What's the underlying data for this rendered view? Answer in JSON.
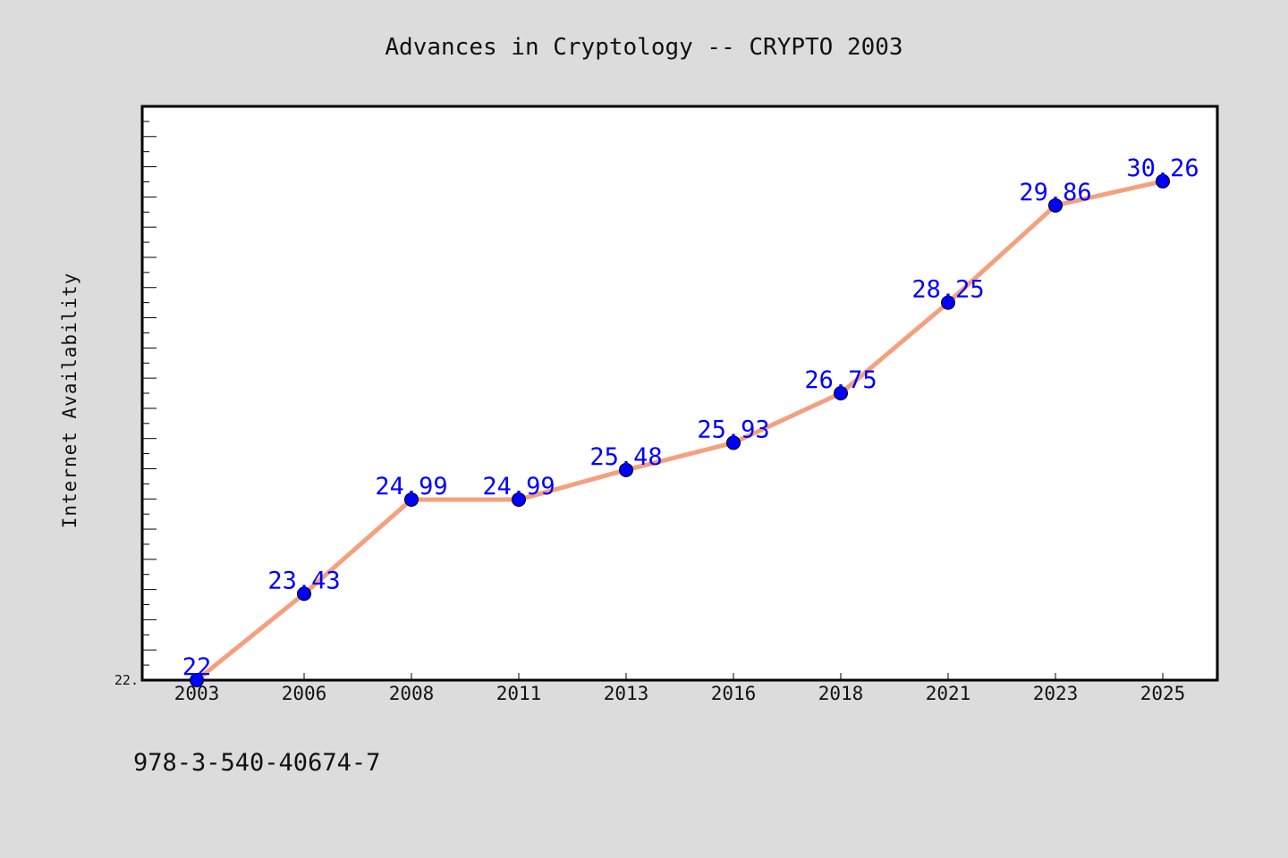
{
  "chart_data": {
    "type": "line",
    "title": "Advances in Cryptology -- CRYPTO 2003",
    "xlabel": "",
    "ylabel": "Internet Availability",
    "x": [
      "2003",
      "2006",
      "2008",
      "2011",
      "2013",
      "2016",
      "2018",
      "2021",
      "2023",
      "2025"
    ],
    "series": [
      {
        "values": [
          22,
          23.43,
          24.99,
          24.99,
          25.48,
          25.93,
          26.75,
          28.25,
          29.86,
          30.26
        ],
        "labels": [
          "22",
          "23.43",
          "24.99",
          "24.99",
          "25.48",
          "25.93",
          "26.75",
          "28.25",
          "29.86",
          "30.26"
        ],
        "line_color": "#f4a07e",
        "marker_color": "#0000ff"
      }
    ],
    "ylim": [
      22,
      31.5
    ],
    "y_tick_label": "22.",
    "grid": false,
    "legend": "none"
  },
  "footer_text": "978-3-540-40674-7",
  "colors": {
    "background": "#dcdcdc",
    "plot_background": "#ffffff",
    "data_label": "#0000ff"
  }
}
